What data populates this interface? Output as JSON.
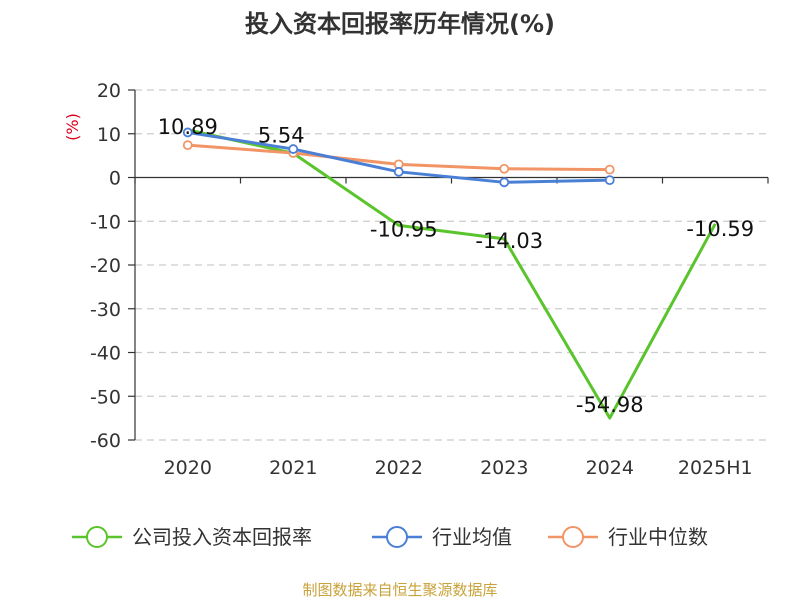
{
  "chart_data": {
    "type": "line",
    "title": "投入资本回报率历年情况(%)",
    "ylabel": "(%)",
    "categories": [
      "2020",
      "2021",
      "2022",
      "2023",
      "2024",
      "2025H1"
    ],
    "ylim": [
      -60,
      20
    ],
    "yticks": [
      20,
      10,
      0,
      -10,
      -20,
      -30,
      -40,
      -50,
      -60
    ],
    "grid": true,
    "legend_position": "bottom",
    "series": [
      {
        "name": "公司投入资本回报率",
        "color": "#5ac42c",
        "values": [
          10.89,
          5.54,
          -10.95,
          -14.03,
          -54.98,
          -10.59
        ],
        "labels": [
          "10.89",
          "5.54",
          "-10.95",
          "-14.03",
          "-54.98",
          "-10.59"
        ]
      },
      {
        "name": "行业均值",
        "color": "#4a7fd6",
        "values": [
          10.3,
          6.5,
          1.3,
          -1.1,
          -0.6,
          null
        ]
      },
      {
        "name": "行业中位数",
        "color": "#f29566",
        "values": [
          7.4,
          5.6,
          3.0,
          2.0,
          1.8,
          null
        ]
      }
    ],
    "source": "制图数据来自恒生聚源数据库"
  }
}
